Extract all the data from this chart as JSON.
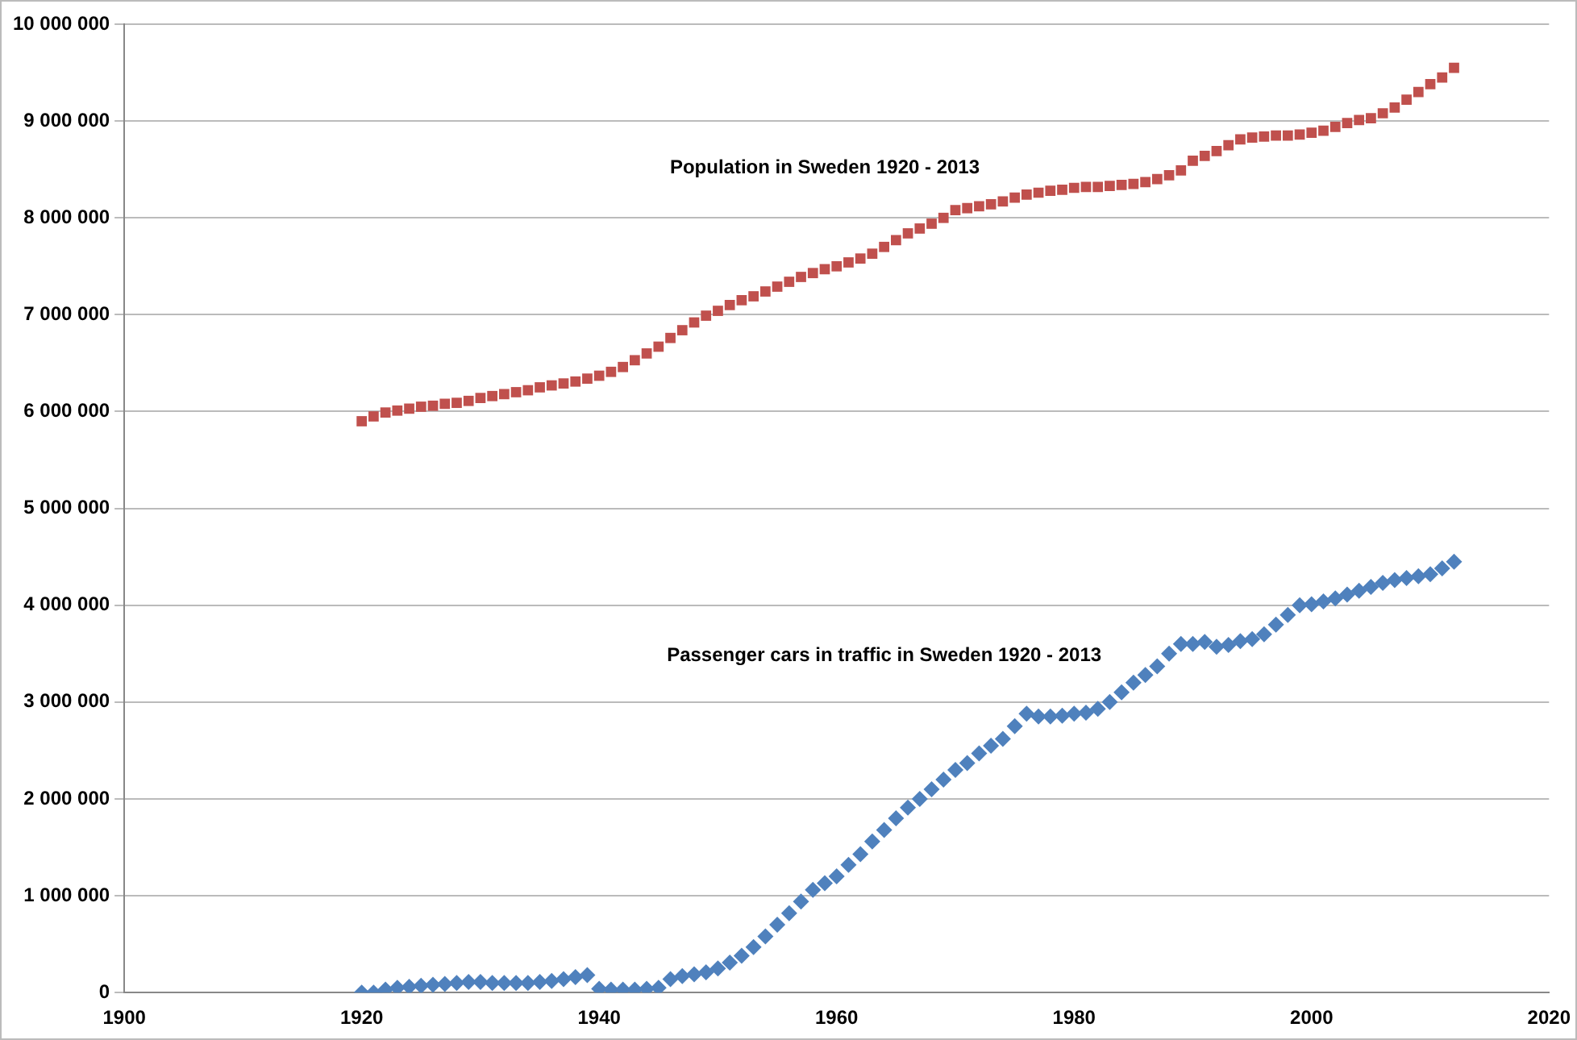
{
  "chart_data": {
    "type": "scatter",
    "x": [
      1920,
      1921,
      1922,
      1923,
      1924,
      1925,
      1926,
      1927,
      1928,
      1929,
      1930,
      1931,
      1932,
      1933,
      1934,
      1935,
      1936,
      1937,
      1938,
      1939,
      1940,
      1941,
      1942,
      1943,
      1944,
      1945,
      1946,
      1947,
      1948,
      1949,
      1950,
      1951,
      1952,
      1953,
      1954,
      1955,
      1956,
      1957,
      1958,
      1959,
      1960,
      1961,
      1962,
      1963,
      1964,
      1965,
      1966,
      1967,
      1968,
      1969,
      1970,
      1971,
      1972,
      1973,
      1974,
      1975,
      1976,
      1977,
      1978,
      1979,
      1980,
      1981,
      1982,
      1983,
      1984,
      1985,
      1986,
      1987,
      1988,
      1989,
      1990,
      1991,
      1992,
      1993,
      1994,
      1995,
      1996,
      1997,
      1998,
      1999,
      2000,
      2001,
      2002,
      2003,
      2004,
      2005,
      2006,
      2007,
      2008,
      2009,
      2010,
      2011,
      2012
    ],
    "series": [
      {
        "name": "Population in Sweden 1920 - 2013",
        "color": "#c0504d",
        "marker": "square",
        "values": [
          5900000,
          5950000,
          5990000,
          6010000,
          6030000,
          6050000,
          6060000,
          6080000,
          6090000,
          6110000,
          6140000,
          6160000,
          6180000,
          6200000,
          6220000,
          6250000,
          6270000,
          6290000,
          6310000,
          6340000,
          6370000,
          6410000,
          6460000,
          6530000,
          6600000,
          6670000,
          6760000,
          6840000,
          6920000,
          6990000,
          7040000,
          7100000,
          7150000,
          7190000,
          7240000,
          7290000,
          7340000,
          7390000,
          7430000,
          7470000,
          7500000,
          7540000,
          7580000,
          7630000,
          7700000,
          7770000,
          7840000,
          7890000,
          7940000,
          8000000,
          8080000,
          8100000,
          8120000,
          8140000,
          8170000,
          8210000,
          8240000,
          8260000,
          8280000,
          8290000,
          8310000,
          8320000,
          8320000,
          8330000,
          8340000,
          8350000,
          8370000,
          8400000,
          8440000,
          8490000,
          8590000,
          8640000,
          8690000,
          8750000,
          8810000,
          8830000,
          8840000,
          8850000,
          8850000,
          8860000,
          8880000,
          8900000,
          8940000,
          8980000,
          9010000,
          9030000,
          9080000,
          9140000,
          9220000,
          9300000,
          9380000,
          9450000,
          9550000
        ]
      },
      {
        "name": "Passenger cars in traffic in Sweden 1920 - 2013",
        "color": "#4f81bd",
        "marker": "diamond",
        "values": [
          0,
          0,
          30000,
          50000,
          60000,
          70000,
          80000,
          90000,
          100000,
          110000,
          110000,
          100000,
          100000,
          100000,
          100000,
          110000,
          120000,
          140000,
          160000,
          180000,
          40000,
          30000,
          30000,
          30000,
          40000,
          50000,
          140000,
          170000,
          190000,
          210000,
          250000,
          310000,
          380000,
          470000,
          580000,
          700000,
          820000,
          940000,
          1060000,
          1130000,
          1200000,
          1320000,
          1430000,
          1560000,
          1680000,
          1800000,
          1910000,
          2000000,
          2100000,
          2200000,
          2300000,
          2370000,
          2470000,
          2550000,
          2620000,
          2750000,
          2880000,
          2850000,
          2850000,
          2860000,
          2880000,
          2890000,
          2930000,
          3000000,
          3100000,
          3200000,
          3280000,
          3370000,
          3500000,
          3600000,
          3600000,
          3620000,
          3570000,
          3590000,
          3630000,
          3650000,
          3700000,
          3800000,
          3900000,
          4000000,
          4010000,
          4040000,
          4070000,
          4110000,
          4150000,
          4190000,
          4230000,
          4260000,
          4280000,
          4300000,
          4320000,
          4380000,
          4450000
        ]
      }
    ],
    "xlim": [
      1900,
      2020
    ],
    "xticks": [
      1900,
      1920,
      1940,
      1960,
      1980,
      2000,
      2020
    ],
    "ylim": [
      0,
      10000000
    ],
    "yticks": [
      {
        "value": 0,
        "label": "0"
      },
      {
        "value": 1000000,
        "label": "1 000 000"
      },
      {
        "value": 2000000,
        "label": "2 000 000"
      },
      {
        "value": 3000000,
        "label": "3 000 000"
      },
      {
        "value": 4000000,
        "label": "4 000 000"
      },
      {
        "value": 5000000,
        "label": "5 000 000"
      },
      {
        "value": 6000000,
        "label": "6 000 000"
      },
      {
        "value": 7000000,
        "label": "7 000 000"
      },
      {
        "value": 8000000,
        "label": "8 000 000"
      },
      {
        "value": 9000000,
        "label": "9 000 000"
      },
      {
        "value": 10000000,
        "label": "10 000 000"
      }
    ],
    "grid": "y",
    "legend": false
  }
}
